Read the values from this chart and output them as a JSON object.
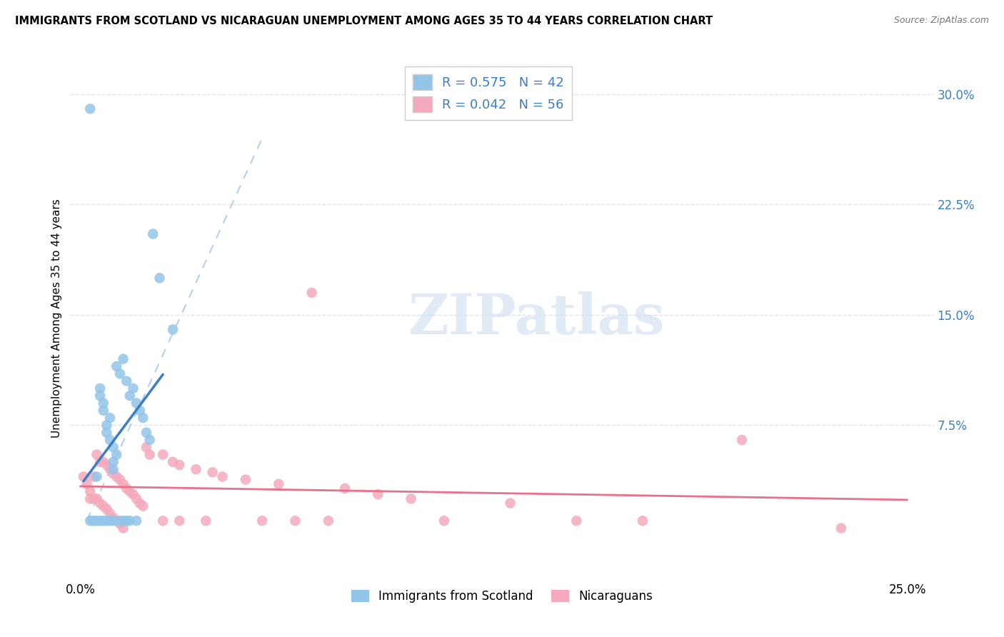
{
  "title": "IMMIGRANTS FROM SCOTLAND VS NICARAGUAN UNEMPLOYMENT AMONG AGES 35 TO 44 YEARS CORRELATION CHART",
  "source": "Source: ZipAtlas.com",
  "ylabel": "Unemployment Among Ages 35 to 44 years",
  "color_scotland": "#92C5E8",
  "color_nicaragua": "#F4AABC",
  "color_line_scotland": "#3A7EC6",
  "color_line_nicaragua": "#E8708A",
  "color_dashed": "#AACCEE",
  "watermark_color": "#C8DCF0",
  "scotland_x": [
    0.003,
    0.022,
    0.024,
    0.028,
    0.003,
    0.004,
    0.005,
    0.005,
    0.006,
    0.006,
    0.007,
    0.007,
    0.008,
    0.008,
    0.009,
    0.009,
    0.01,
    0.01,
    0.01,
    0.011,
    0.011,
    0.012,
    0.013,
    0.014,
    0.014,
    0.015,
    0.016,
    0.017,
    0.018,
    0.019,
    0.02,
    0.021,
    0.004,
    0.006,
    0.007,
    0.008,
    0.009,
    0.01,
    0.012,
    0.013,
    0.015,
    0.017
  ],
  "scotland_y": [
    0.29,
    0.205,
    0.175,
    0.14,
    0.01,
    0.01,
    0.04,
    0.01,
    0.1,
    0.095,
    0.09,
    0.085,
    0.075,
    0.07,
    0.08,
    0.065,
    0.05,
    0.045,
    0.06,
    0.055,
    0.115,
    0.11,
    0.12,
    0.01,
    0.105,
    0.095,
    0.1,
    0.09,
    0.085,
    0.08,
    0.07,
    0.065,
    0.01,
    0.01,
    0.01,
    0.01,
    0.01,
    0.01,
    0.01,
    0.01,
    0.01,
    0.01
  ],
  "nicaragua_x": [
    0.001,
    0.002,
    0.003,
    0.003,
    0.004,
    0.004,
    0.005,
    0.005,
    0.006,
    0.006,
    0.007,
    0.007,
    0.008,
    0.008,
    0.009,
    0.009,
    0.01,
    0.01,
    0.011,
    0.011,
    0.012,
    0.012,
    0.013,
    0.013,
    0.014,
    0.015,
    0.016,
    0.017,
    0.018,
    0.019,
    0.02,
    0.021,
    0.025,
    0.025,
    0.028,
    0.03,
    0.03,
    0.035,
    0.038,
    0.04,
    0.043,
    0.05,
    0.055,
    0.06,
    0.065,
    0.07,
    0.075,
    0.08,
    0.09,
    0.1,
    0.11,
    0.13,
    0.15,
    0.17,
    0.2,
    0.23
  ],
  "nicaragua_y": [
    0.04,
    0.035,
    0.03,
    0.025,
    0.04,
    0.025,
    0.055,
    0.025,
    0.05,
    0.022,
    0.05,
    0.02,
    0.048,
    0.018,
    0.045,
    0.015,
    0.042,
    0.012,
    0.04,
    0.01,
    0.038,
    0.008,
    0.035,
    0.005,
    0.032,
    0.03,
    0.028,
    0.025,
    0.022,
    0.02,
    0.06,
    0.055,
    0.055,
    0.01,
    0.05,
    0.048,
    0.01,
    0.045,
    0.01,
    0.043,
    0.04,
    0.038,
    0.01,
    0.035,
    0.01,
    0.165,
    0.01,
    0.032,
    0.028,
    0.025,
    0.01,
    0.022,
    0.01,
    0.01,
    0.065,
    0.005
  ],
  "xmin": -0.003,
  "xmax": 0.258,
  "ymin": -0.03,
  "ymax": 0.325,
  "yticks": [
    0.0,
    0.075,
    0.15,
    0.225,
    0.3
  ],
  "ytick_labels": [
    "",
    "7.5%",
    "15.0%",
    "22.5%",
    "30.0%"
  ],
  "xticks": [
    0.0,
    0.25
  ],
  "xtick_labels": [
    "0.0%",
    "25.0%"
  ]
}
